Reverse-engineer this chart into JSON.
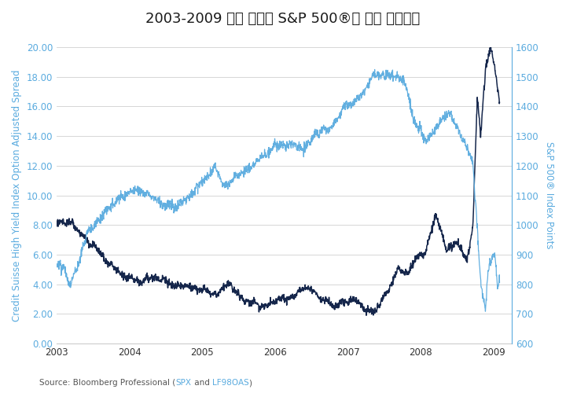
{
  "title": "2003-2009 기간 동안의 S&P 500®과 신용 스프레드",
  "ylabel_left": "Credit Suisse High Yield Index Option Adjusted Spread",
  "ylabel_right": "S&P 500® Index Points",
  "source_spx": "SPX",
  "source_lf": "LF98OAS",
  "spx_color": "#5aabdf",
  "lf_color": "#5aabdf",
  "line_dark_color": "#0d1f45",
  "line_light_color": "#5aabdf",
  "axis_label_color": "#5aabdf",
  "ylim_left": [
    0.0,
    20.0
  ],
  "ylim_right": [
    600,
    1600
  ],
  "yticks_left": [
    0.0,
    2.0,
    4.0,
    6.0,
    8.0,
    10.0,
    12.0,
    14.0,
    16.0,
    18.0,
    20.0
  ],
  "yticks_right": [
    600,
    700,
    800,
    900,
    1000,
    1100,
    1200,
    1300,
    1400,
    1500,
    1600
  ],
  "background_color": "#ffffff",
  "grid_color": "#d0d0d0",
  "title_fontsize": 13,
  "axis_label_fontsize": 8.5,
  "tick_fontsize": 8.5,
  "source_fontsize": 7.5
}
